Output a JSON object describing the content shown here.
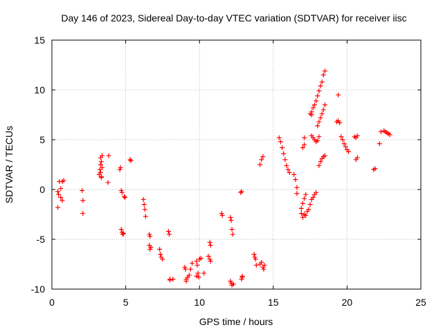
{
  "chart_data": {
    "type": "scatter",
    "title": "Day 146 of 2023, Sidereal Day-to-day VTEC variation (SDTVAR) for receiver iisc",
    "xlabel": "GPS time / hours",
    "ylabel": "SDTVAR / TECUs",
    "xlim": [
      0,
      25
    ],
    "ylim": [
      -10,
      15
    ],
    "xticks": [
      "0",
      "5",
      "10",
      "15",
      "20",
      "25"
    ],
    "yticks": [
      "-10",
      "-5",
      "0",
      "5",
      "10",
      "15"
    ],
    "grid": true,
    "marker": "+",
    "color": "#ff0000",
    "series": [
      {
        "name": "SDTVAR",
        "x": [
          0.4,
          0.4,
          0.45,
          0.5,
          0.6,
          0.6,
          0.7,
          0.7,
          0.8,
          2.05,
          2.1,
          2.1,
          3.2,
          3.25,
          3.3,
          3.3,
          3.35,
          3.35,
          3.4,
          3.4,
          3.3,
          3.35,
          3.8,
          3.85,
          4.6,
          4.65,
          4.7,
          4.75,
          4.7,
          4.75,
          5.3,
          5.35,
          4.8,
          4.85,
          4.9,
          4.95,
          6.2,
          6.25,
          6.3,
          6.35,
          6.6,
          6.65,
          6.7,
          6.6,
          6.65,
          7.3,
          7.35,
          7.4,
          7.5,
          7.9,
          7.95,
          8.0,
          8.0,
          8.2,
          9.0,
          9.05,
          9.1,
          9.1,
          9.2,
          9.3,
          9.4,
          9.5,
          9.8,
          9.85,
          9.9,
          9.95,
          9.8,
          10.0,
          10.3,
          10.1,
          10.6,
          10.7,
          10.75,
          10.7,
          10.75,
          11.5,
          11.55,
          12.1,
          12.15,
          12.2,
          12.25,
          12.1,
          12.15,
          12.2,
          12.3,
          12.8,
          12.85,
          12.9,
          12.85,
          12.9,
          13.7,
          13.75,
          13.8,
          13.85,
          14.1,
          14.2,
          14.3,
          14.35,
          14.4,
          14.1,
          14.2,
          14.3,
          15.4,
          15.5,
          15.6,
          15.7,
          15.8,
          15.9,
          16.0,
          16.1,
          16.4,
          16.5,
          16.6,
          16.6,
          16.9,
          17.0,
          17.1,
          17.2,
          17.3,
          17.4,
          17.5,
          17.6,
          17.7,
          17.8,
          17.9,
          16.9,
          17.0,
          17.1,
          17.2,
          17.0,
          17.1,
          17.1,
          17.6,
          17.7,
          17.8,
          17.9,
          18.0,
          18.1,
          17.5,
          17.6,
          17.7,
          17.8,
          17.9,
          18.0,
          18.1,
          18.2,
          18.3,
          18.4,
          18.5,
          18.0,
          18.1,
          18.2,
          18.3,
          18.4,
          18.5,
          18.1,
          18.2,
          18.3,
          18.4,
          18.5,
          19.3,
          19.4,
          19.5,
          19.6,
          19.7,
          19.8,
          19.9,
          20.0,
          20.1,
          20.5,
          20.6,
          20.7,
          20.6,
          20.7,
          21.8,
          21.9,
          22.2,
          22.3,
          22.5,
          22.6,
          22.7,
          22.8,
          22.9,
          17.6,
          19.4
        ],
        "y": [
          -0.2,
          -1.8,
          -0.5,
          0.8,
          0.1,
          -0.8,
          -1.1,
          0.8,
          0.9,
          -0.1,
          -1.1,
          -2.4,
          1.5,
          2.0,
          2.5,
          3.2,
          2.8,
          1.2,
          3.4,
          2.2,
          1.7,
          1.3,
          0.7,
          3.4,
          2.0,
          2.2,
          -0.1,
          -0.3,
          -4.0,
          -4.3,
          3.0,
          2.9,
          -4.5,
          -4.4,
          -0.7,
          -0.8,
          -1.0,
          -1.5,
          -2.0,
          -2.7,
          -4.5,
          -4.7,
          -5.8,
          -5.6,
          -6.0,
          -6.0,
          -6.5,
          -6.8,
          -7.0,
          -4.2,
          -4.5,
          -9.0,
          -9.1,
          -9.0,
          -7.8,
          -8.0,
          -9.0,
          -9.2,
          -8.8,
          -8.6,
          -8.0,
          -7.4,
          -7.2,
          -7.6,
          -8.4,
          -8.8,
          -8.7,
          -7.0,
          -8.4,
          -6.9,
          -6.7,
          -5.3,
          -5.6,
          -7.0,
          -7.2,
          -2.4,
          -2.6,
          -2.8,
          -3.1,
          -4.0,
          -4.5,
          -9.2,
          -9.4,
          -9.6,
          -9.5,
          -0.3,
          -0.2,
          -8.8,
          -9.0,
          -8.7,
          -6.5,
          -6.8,
          -7.0,
          -7.6,
          -7.5,
          -7.3,
          -7.8,
          -8.0,
          -7.6,
          2.5,
          3.0,
          3.3,
          5.2,
          4.8,
          4.2,
          3.6,
          3.0,
          2.4,
          2.0,
          1.7,
          1.5,
          1.0,
          0.2,
          -0.4,
          -2.4,
          -2.8,
          -2.5,
          -2.6,
          -2.2,
          -2.0,
          -1.5,
          -1.0,
          -0.8,
          -0.5,
          -0.3,
          -1.9,
          -1.4,
          -0.9,
          -0.5,
          4.2,
          4.5,
          5.2,
          5.4,
          5.2,
          5.0,
          4.8,
          4.9,
          5.3,
          7.6,
          7.8,
          8.2,
          8.5,
          8.9,
          9.4,
          9.9,
          10.4,
          10.8,
          11.5,
          11.9,
          6.4,
          6.8,
          7.2,
          7.6,
          8.0,
          8.5,
          2.4,
          2.8,
          3.1,
          3.3,
          3.4,
          6.8,
          6.9,
          6.7,
          5.3,
          5.0,
          4.6,
          4.3,
          4.0,
          3.8,
          5.3,
          5.2,
          5.4,
          3.0,
          3.2,
          2.0,
          2.1,
          4.6,
          5.8,
          5.9,
          5.8,
          5.7,
          5.6,
          5.5,
          7.5,
          9.5
        ]
      }
    ]
  }
}
